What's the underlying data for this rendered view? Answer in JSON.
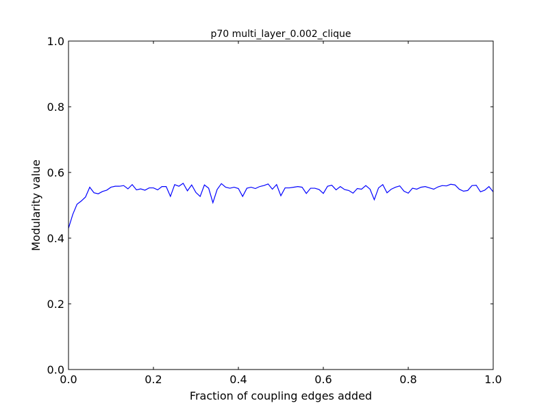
{
  "chart_data": {
    "type": "line",
    "title": "p70 multi_layer_0.002_clique",
    "xlabel": "Fraction of coupling edges added",
    "ylabel": "Modularity value",
    "xlim": [
      0.0,
      1.0
    ],
    "ylim": [
      0.0,
      1.0
    ],
    "xticks": [
      "0.0",
      "0.2",
      "0.4",
      "0.6",
      "0.8",
      "1.0"
    ],
    "yticks": [
      "0.0",
      "0.2",
      "0.4",
      "0.6",
      "0.8",
      "1.0"
    ],
    "grid": false,
    "legend": false,
    "colors": {
      "line": "#0000ff",
      "axes": "#000000",
      "background": "#ffffff"
    },
    "series": [
      {
        "x": [
          0.0,
          0.01,
          0.02,
          0.03,
          0.04,
          0.05,
          0.06,
          0.07,
          0.08,
          0.09,
          0.1,
          0.11,
          0.12,
          0.13,
          0.14,
          0.15,
          0.16,
          0.17,
          0.18,
          0.19,
          0.2,
          0.21,
          0.22,
          0.23,
          0.24,
          0.25,
          0.26,
          0.27,
          0.28,
          0.29,
          0.3,
          0.31,
          0.32,
          0.33,
          0.34,
          0.35,
          0.36,
          0.37,
          0.38,
          0.39,
          0.4,
          0.41,
          0.42,
          0.43,
          0.44,
          0.45,
          0.46,
          0.47,
          0.48,
          0.49,
          0.5,
          0.51,
          0.52,
          0.53,
          0.54,
          0.55,
          0.56,
          0.57,
          0.58,
          0.59,
          0.6,
          0.61,
          0.62,
          0.63,
          0.64,
          0.65,
          0.66,
          0.67,
          0.68,
          0.69,
          0.7,
          0.71,
          0.72,
          0.73,
          0.74,
          0.75,
          0.76,
          0.77,
          0.78,
          0.79,
          0.8,
          0.81,
          0.82,
          0.83,
          0.84,
          0.85,
          0.86,
          0.87,
          0.88,
          0.89,
          0.9,
          0.91,
          0.92,
          0.93,
          0.94,
          0.95,
          0.96,
          0.97,
          0.98,
          0.99,
          1.0
        ],
        "y": [
          0.43,
          0.472,
          0.503,
          0.513,
          0.525,
          0.555,
          0.538,
          0.535,
          0.542,
          0.546,
          0.555,
          0.558,
          0.558,
          0.56,
          0.55,
          0.563,
          0.547,
          0.55,
          0.546,
          0.553,
          0.553,
          0.547,
          0.557,
          0.557,
          0.527,
          0.563,
          0.558,
          0.567,
          0.544,
          0.562,
          0.539,
          0.527,
          0.562,
          0.552,
          0.508,
          0.548,
          0.566,
          0.555,
          0.552,
          0.555,
          0.551,
          0.527,
          0.552,
          0.555,
          0.551,
          0.557,
          0.56,
          0.565,
          0.549,
          0.563,
          0.529,
          0.553,
          0.553,
          0.555,
          0.557,
          0.555,
          0.536,
          0.552,
          0.552,
          0.548,
          0.536,
          0.558,
          0.561,
          0.547,
          0.557,
          0.548,
          0.545,
          0.537,
          0.551,
          0.549,
          0.56,
          0.549,
          0.517,
          0.553,
          0.563,
          0.538,
          0.549,
          0.555,
          0.559,
          0.543,
          0.537,
          0.552,
          0.549,
          0.555,
          0.557,
          0.553,
          0.549,
          0.556,
          0.56,
          0.559,
          0.564,
          0.562,
          0.549,
          0.543,
          0.545,
          0.56,
          0.561,
          0.541,
          0.546,
          0.557,
          0.541
        ]
      }
    ]
  }
}
